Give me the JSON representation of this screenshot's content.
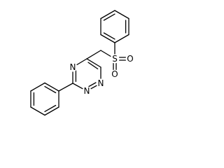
{
  "labels": {
    "n4": "N",
    "n1": "N",
    "n2": "N",
    "s": "S",
    "o1": "O",
    "o2": "O"
  }
}
